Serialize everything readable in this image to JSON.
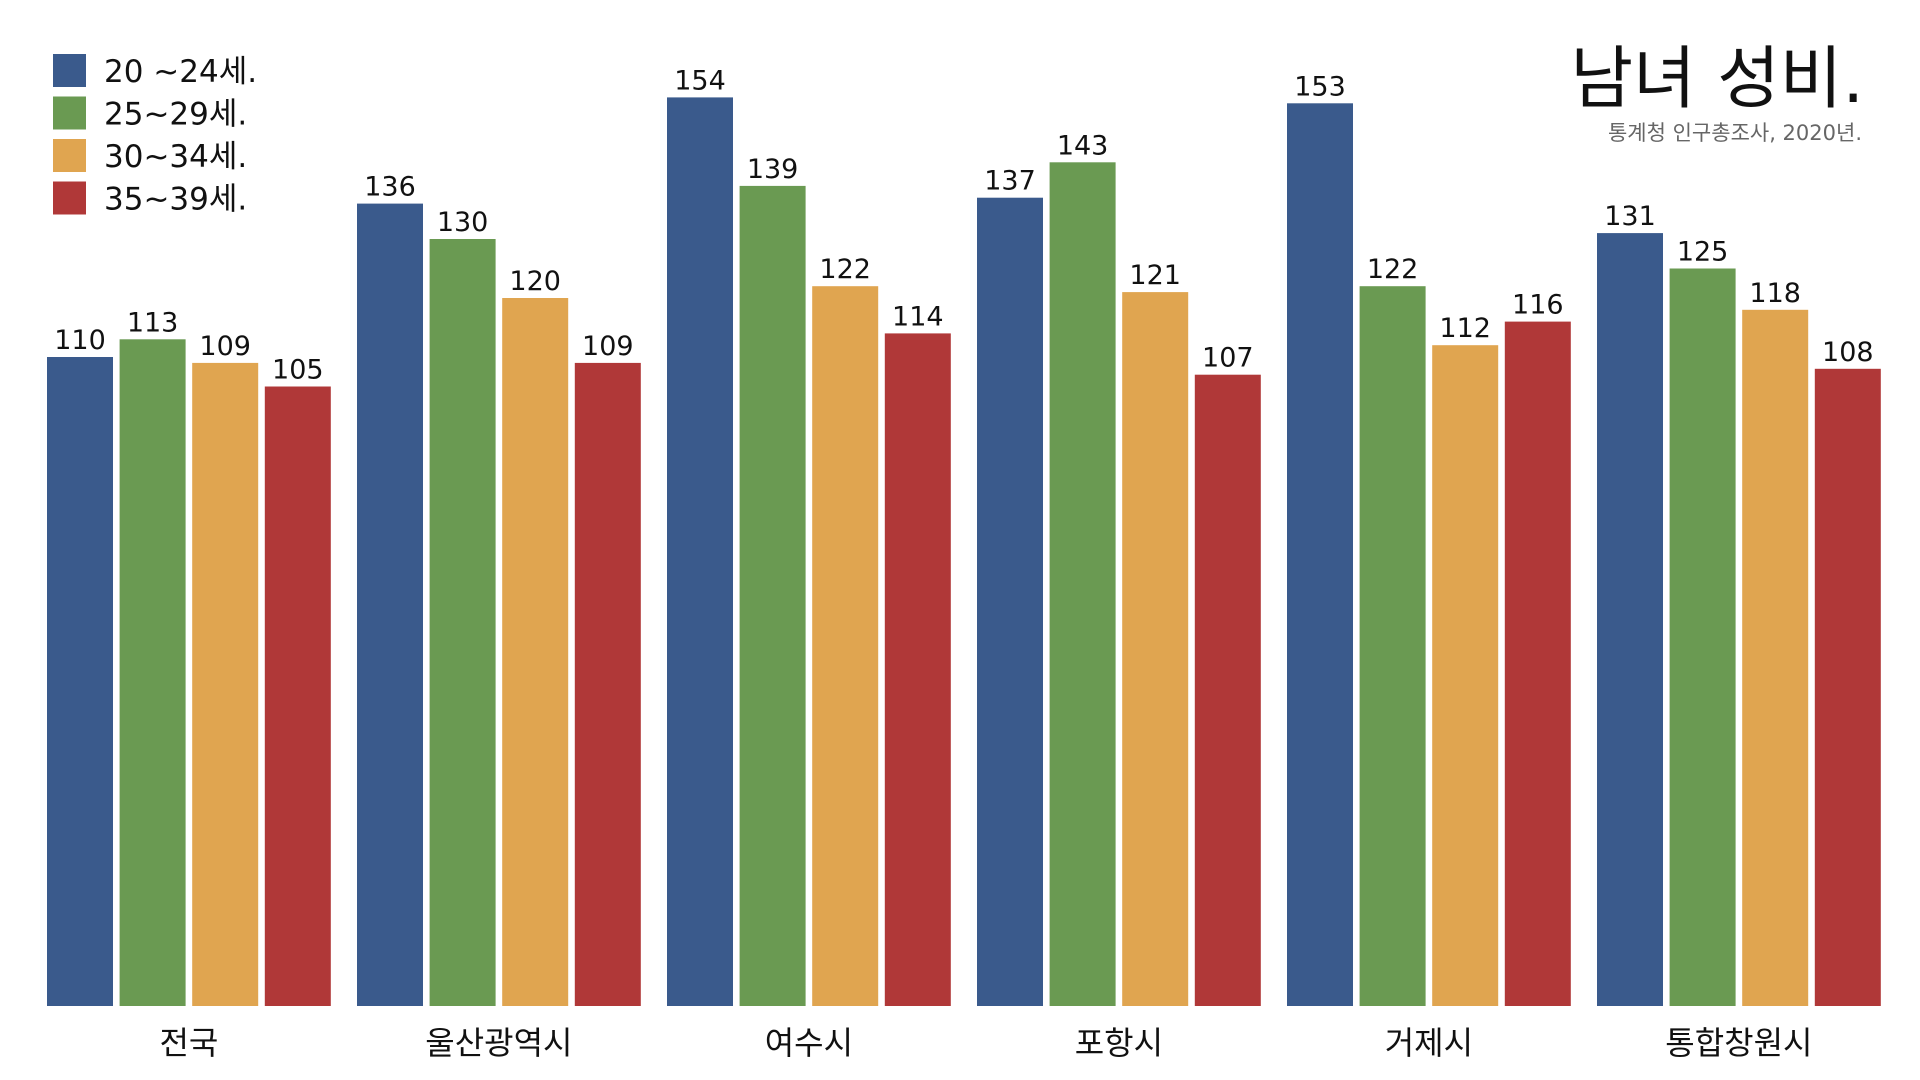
{
  "chart_data": {
    "type": "bar",
    "title": "남녀 성비.",
    "subtitle": "통계청 인구총조사, 2020년.",
    "categories": [
      "전국",
      "울산광역시",
      "여수시",
      "포항시",
      "거제시",
      "통합창원시"
    ],
    "series": [
      {
        "name": "20 ~24세.",
        "color": "#3a5a8c",
        "values": [
          110,
          136,
          154,
          137,
          153,
          131
        ]
      },
      {
        "name": "25~29세.",
        "color": "#6a9a52",
        "values": [
          113,
          130,
          139,
          143,
          122,
          125
        ]
      },
      {
        "name": "30~34세.",
        "color": "#e0a550",
        "values": [
          109,
          120,
          122,
          121,
          112,
          118
        ]
      },
      {
        "name": "35~39세.",
        "color": "#b03838",
        "values": [
          105,
          109,
          114,
          107,
          116,
          108
        ]
      }
    ],
    "legend": "upper left"
  }
}
